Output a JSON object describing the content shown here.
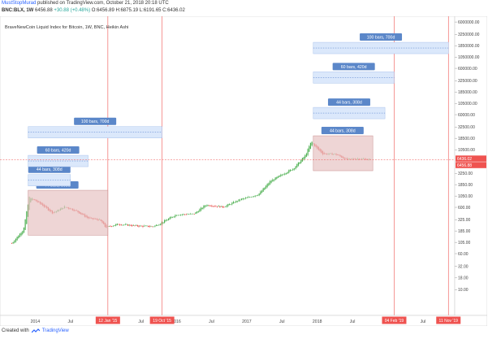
{
  "header": {
    "author": "MustStopMurad",
    "published_text": "published on TradingView.com, October 21, 2018 20:18 UTC",
    "symbol": "BNC:BLX, 1W",
    "last": "6456.88",
    "change": "+30.88 (+0.48%)",
    "ohlc": "O:6456.89 H:6875.19 L:6191.65 C:6436.02"
  },
  "footer": {
    "created_with": "Created with",
    "brand": "TradingView"
  },
  "chart_data": {
    "type": "candlestick",
    "title": "BraveNewCoin Liquid Index for Bitcoin, 1W, BNC, Heikin Ashi",
    "y_scale": "log",
    "y_tick_labels": [
      "6000000.00",
      "3250000.00",
      "1850000.00",
      "1050000.00",
      "600000.00",
      "325000.00",
      "185000.00",
      "105000.00",
      "60000.00",
      "32500.00",
      "18500.00",
      "10500.00",
      "3250.00",
      "1850.00",
      "1050.00",
      "600.00",
      "325.00",
      "185.00",
      "105.00",
      "60.00",
      "32.00",
      "18.00",
      "10.00"
    ],
    "price_labels": [
      "6436.02",
      "6456.88"
    ],
    "x_tick_labels": [
      "Jul",
      "2014",
      "Jul",
      "Jul",
      "Jul",
      "2016",
      "Jul",
      "2017",
      "Jul",
      "2018",
      "Jul",
      "Jul"
    ],
    "vertical_markers": [
      "12 Jan '15",
      "19 Oct '15",
      "04 Feb '19",
      "11 Nov '19"
    ],
    "series": [
      {
        "x": [
          "2013-09",
          "2013-11",
          "2013-12",
          "2014-02",
          "2014-04",
          "2014-06",
          "2014-08",
          "2014-10",
          "2014-12",
          "2015-01",
          "2015-03",
          "2015-06",
          "2015-09",
          "2015-10",
          "2016-01",
          "2016-04",
          "2016-06",
          "2016-09",
          "2016-12",
          "2017-01",
          "2017-03",
          "2017-05",
          "2017-06",
          "2017-08",
          "2017-09",
          "2017-11",
          "2017-12",
          "2018-01",
          "2018-02",
          "2018-04",
          "2018-06",
          "2018-08",
          "2018-10"
        ],
        "y": [
          100,
          200,
          1000,
          700,
          450,
          620,
          500,
          350,
          320,
          220,
          260,
          240,
          230,
          260,
          420,
          430,
          680,
          610,
          900,
          960,
          1150,
          2200,
          2600,
          3600,
          4200,
          8000,
          16000,
          11000,
          8500,
          8500,
          6500,
          6800,
          6450
        ]
      }
    ],
    "annotations": {
      "boxes": [
        "44 bars, 308d",
        "44 bars, 308d"
      ],
      "projections": [
        "44 bars, 308d",
        "60 bars, 420d",
        "100 bars, 700d",
        "44 bars, 308d",
        "60 bars, 420d",
        "100 bars, 700d"
      ]
    },
    "colors": {
      "up": "#4caf50",
      "down": "#e53935",
      "box_fill": "#e7c3c3",
      "projection_fill": "#dbe8fb",
      "label": "#5b87c9"
    }
  }
}
